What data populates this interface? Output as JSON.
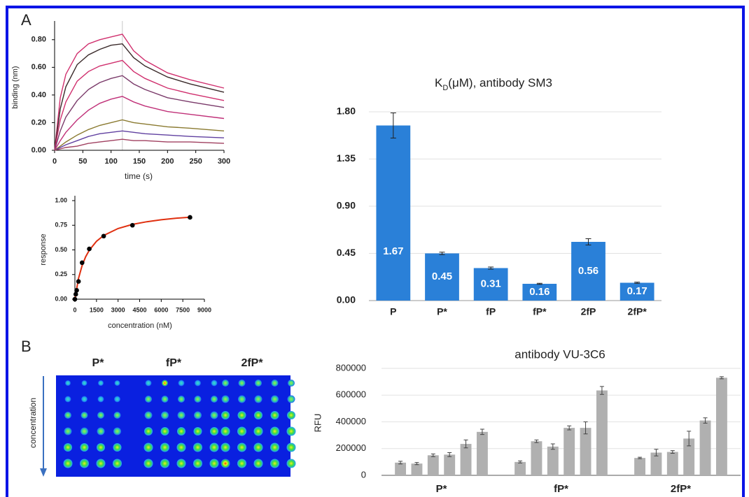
{
  "panels": [
    "A",
    "B"
  ],
  "image": {
    "labels": [
      "P*",
      "fP*",
      "2fP*"
    ],
    "axis_label": "concentration"
  },
  "chart_data": [
    {
      "type": "line",
      "xlabel": "time (s)",
      "ylabel": "binding (nm)",
      "x": [
        0,
        10,
        20,
        40,
        60,
        80,
        100,
        120,
        140,
        160,
        200,
        240,
        300
      ],
      "xlim": [
        0,
        300
      ],
      "xticks": [
        0,
        50,
        100,
        150,
        200,
        250,
        300
      ],
      "ylim": [
        0,
        0.9
      ],
      "yticks": [
        {
          "value": 0,
          "label": "0.00"
        },
        {
          "value": 0.2,
          "label": "0.20"
        },
        {
          "value": 0.4,
          "label": "0.40"
        },
        {
          "value": 0.6,
          "label": "0.60"
        },
        {
          "value": 0.8,
          "label": "0.80"
        }
      ],
      "grid": false,
      "series": [
        {
          "color": "#d0306e",
          "values": [
            0,
            0.38,
            0.55,
            0.7,
            0.77,
            0.8,
            0.82,
            0.84,
            0.72,
            0.65,
            0.56,
            0.51,
            0.45
          ]
        },
        {
          "color": "#3a2a2a",
          "values": [
            0,
            0.3,
            0.46,
            0.62,
            0.69,
            0.73,
            0.76,
            0.77,
            0.67,
            0.61,
            0.53,
            0.48,
            0.42
          ]
        },
        {
          "color": "#d0306e",
          "values": [
            0,
            0.22,
            0.35,
            0.5,
            0.57,
            0.61,
            0.63,
            0.65,
            0.57,
            0.52,
            0.45,
            0.41,
            0.36
          ]
        },
        {
          "color": "#7a3a6a",
          "values": [
            0,
            0.14,
            0.24,
            0.36,
            0.44,
            0.49,
            0.52,
            0.54,
            0.48,
            0.44,
            0.38,
            0.35,
            0.31
          ]
        },
        {
          "color": "#c03078",
          "values": [
            0,
            0.07,
            0.13,
            0.22,
            0.29,
            0.34,
            0.37,
            0.39,
            0.35,
            0.32,
            0.28,
            0.26,
            0.23
          ]
        },
        {
          "color": "#8a7a30",
          "values": [
            0,
            0.03,
            0.06,
            0.11,
            0.15,
            0.18,
            0.2,
            0.22,
            0.2,
            0.19,
            0.17,
            0.16,
            0.14
          ]
        },
        {
          "color": "#6040a0",
          "values": [
            0,
            0.02,
            0.04,
            0.07,
            0.1,
            0.12,
            0.13,
            0.14,
            0.13,
            0.12,
            0.11,
            0.1,
            0.09
          ]
        },
        {
          "color": "#a04060",
          "values": [
            0,
            0.01,
            0.02,
            0.03,
            0.05,
            0.06,
            0.07,
            0.08,
            0.07,
            0.07,
            0.06,
            0.06,
            0.05
          ]
        }
      ]
    },
    {
      "type": "scatter",
      "xlabel": "concentration  (nM)",
      "ylabel": "response",
      "xlim": [
        0,
        9000
      ],
      "xticks": [
        0,
        1500,
        3000,
        4500,
        6000,
        7500,
        9000
      ],
      "ylim": [
        0,
        1
      ],
      "yticks": [
        {
          "value": 0,
          "label": "0.00"
        },
        {
          "value": 0.25,
          "label": "0.25"
        },
        {
          "value": 0.5,
          "label": "0.50"
        },
        {
          "value": 0.75,
          "label": "0.75"
        },
        {
          "value": 1,
          "label": "1.00"
        }
      ],
      "grid": false,
      "series": [
        {
          "style": "line",
          "color": "#e03010",
          "x": [
            0,
            250,
            500,
            750,
            1000,
            1500,
            2000,
            3000,
            4000,
            5000,
            6000,
            7000,
            8000
          ],
          "values": [
            0,
            0.209,
            0.341,
            0.431,
            0.497,
            0.587,
            0.646,
            0.717,
            0.759,
            0.786,
            0.806,
            0.821,
            0.832
          ]
        },
        {
          "style": "markers",
          "color": "#000000",
          "x": [
            0,
            62,
            125,
            250,
            500,
            1000,
            2000,
            4000,
            8000
          ],
          "values": [
            0,
            0.05,
            0.09,
            0.18,
            0.37,
            0.51,
            0.64,
            0.75,
            0.83
          ]
        }
      ]
    },
    {
      "type": "bar",
      "title": [
        "K",
        "D",
        "(μM), antibody SM3"
      ],
      "categories": [
        "P",
        "P*",
        "fP",
        "fP*",
        "2fP",
        "2fP*"
      ],
      "values": [
        1.67,
        0.45,
        0.31,
        0.16,
        0.56,
        0.17
      ],
      "errors": [
        0.12,
        0.012,
        0.01,
        0.005,
        0.03,
        0.006
      ],
      "color": "#2a80d8",
      "ylim": [
        0,
        1.8
      ],
      "yticks": [
        {
          "value": 0,
          "label": "0.00"
        },
        0.45,
        {
          "value": 0.9,
          "label": "0.90"
        },
        1.35,
        {
          "value": 1.8,
          "label": "1.80"
        }
      ],
      "grid": true
    },
    {
      "type": "grouped-bar",
      "title": "antibody VU-3C6",
      "ylabel": "RFU",
      "categories": [
        "P*",
        "fP*",
        "2fP*"
      ],
      "ylim": [
        0,
        800000
      ],
      "yticks": [
        0,
        200000,
        400000,
        600000,
        800000
      ],
      "grid": true,
      "series": [
        {
          "color": "#b0b0b0",
          "values": [
            95000,
            100000,
            130000
          ],
          "errors": [
            10000,
            8000,
            5000
          ]
        },
        {
          "color": "#b0b0b0",
          "values": [
            88000,
            255000,
            170000
          ],
          "errors": [
            8000,
            10000,
            25000
          ]
        },
        {
          "color": "#b0b0b0",
          "values": [
            150000,
            215000,
            175000
          ],
          "errors": [
            10000,
            20000,
            10000
          ]
        },
        {
          "color": "#b0b0b0",
          "values": [
            155000,
            355000,
            275000
          ],
          "errors": [
            15000,
            15000,
            55000
          ]
        },
        {
          "color": "#b0b0b0",
          "values": [
            235000,
            355000,
            410000
          ],
          "errors": [
            30000,
            45000,
            20000
          ]
        },
        {
          "color": "#b0b0b0",
          "values": [
            325000,
            635000,
            730000
          ],
          "errors": [
            20000,
            30000,
            8000
          ]
        }
      ]
    }
  ]
}
